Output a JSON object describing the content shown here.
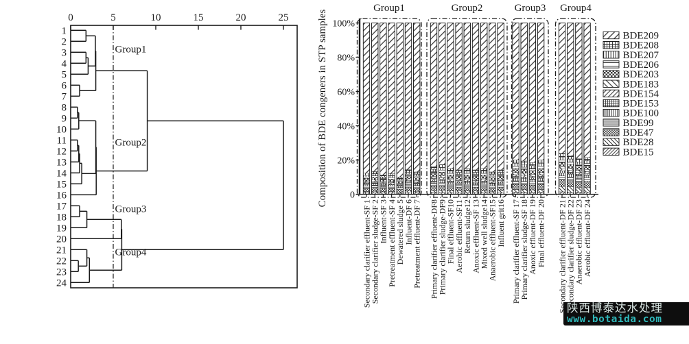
{
  "dendrogram": {
    "axis_ticks": [
      0,
      5,
      10,
      15,
      20,
      25
    ],
    "cut_value": 5,
    "leaves": [
      "1",
      "2",
      "3",
      "4",
      "5",
      "6",
      "7",
      "8",
      "9",
      "10",
      "11",
      "12",
      "13",
      "14",
      "15",
      "16",
      "17",
      "18",
      "19",
      "20",
      "21",
      "22",
      "23",
      "24"
    ],
    "group_labels": [
      {
        "label": "Group1",
        "row": 2.7
      },
      {
        "label": "Group2",
        "row": 11.2
      },
      {
        "label": "Group3",
        "row": 17.25
      },
      {
        "label": "Group4",
        "row": 21.2
      }
    ],
    "merges": [
      {
        "id": "m1",
        "a": "L1",
        "b": "L2",
        "h": 1.8
      },
      {
        "id": "m2",
        "a": "L3",
        "b": "L4",
        "h": 1.8
      },
      {
        "id": "m3",
        "a": "m2",
        "b": "L5",
        "h": 2.05
      },
      {
        "id": "m4",
        "a": "m1",
        "b": "m3",
        "h": 2.9
      },
      {
        "id": "m5",
        "a": "L6",
        "b": "L7",
        "h": 1.05
      },
      {
        "id": "m6",
        "a": "m4",
        "b": "m5",
        "h": 2.95
      },
      {
        "id": "m7",
        "a": "L8",
        "b": "L9",
        "h": 0.8
      },
      {
        "id": "m8",
        "a": "m7",
        "b": "L10",
        "h": 0.95
      },
      {
        "id": "m9",
        "a": "L11",
        "b": "L12",
        "h": 0.8
      },
      {
        "id": "m10",
        "a": "m9",
        "b": "L13",
        "h": 0.95
      },
      {
        "id": "m11",
        "a": "m10",
        "b": "L14",
        "h": 1.05
      },
      {
        "id": "m12",
        "a": "m11",
        "b": "L15",
        "h": 1.3
      },
      {
        "id": "m13",
        "a": "m8",
        "b": "m12",
        "h": 2.95
      },
      {
        "id": "m14",
        "a": "m13",
        "b": "L16",
        "h": 3.0
      },
      {
        "id": "m15",
        "a": "m6",
        "b": "m14",
        "h": 9.0
      },
      {
        "id": "m16",
        "a": "L17",
        "b": "L18",
        "h": 1.05
      },
      {
        "id": "m17",
        "a": "m16",
        "b": "L19",
        "h": 1.9
      },
      {
        "id": "m18",
        "a": "L22",
        "b": "L23",
        "h": 0.9
      },
      {
        "id": "m19",
        "a": "L21",
        "b": "m18",
        "h": 1.9
      },
      {
        "id": "m20",
        "a": "m19",
        "b": "L24",
        "h": 2.2
      },
      {
        "id": "m21",
        "a": "m17",
        "b": "L20",
        "h": 5.95
      },
      {
        "id": "m22",
        "a": "m21",
        "b": "m20",
        "h": 6.0
      },
      {
        "id": "m23",
        "a": "m15",
        "b": "m22",
        "h": 25.0
      }
    ]
  },
  "chart_data": {
    "type": "bar",
    "subtype": "stacked-percent",
    "ylabel": "Composition of BDE congeners in STP samples",
    "ylim": [
      0,
      100
    ],
    "ytick_labels": [
      "0",
      "20%",
      "40%",
      "60%",
      "80%",
      "100%"
    ],
    "ytick_values": [
      0,
      20,
      40,
      60,
      80,
      100
    ],
    "legend_position": "right",
    "groups": [
      {
        "label": "Group1",
        "count": 7
      },
      {
        "label": "Group2",
        "count": 9
      },
      {
        "label": "Group3",
        "count": 4
      },
      {
        "label": "Group4",
        "count": 4
      }
    ],
    "categories": [
      "Secondary clarifier effluent-SF 1",
      "Secondary clarifier sludge-SF 2",
      "Influent-SF 3",
      "Pretreatment effluent-SF 4",
      "Dewatered sludge 5",
      "Influent-DF 6",
      "Pretreatment effluent-DF 7",
      "Primary clarifier effluent-DF8",
      "Primary clarifier sludge-DF9",
      "Final effluent-SF10",
      "Aerobic effluent-SF11",
      "Return sludge12",
      "Anoxic effluent-SF 13",
      "Mixed well sludge14",
      "Anaerobic effluent-SF15",
      "Influent grit16",
      "Primary clarifier effluent-SF 17",
      "Primary clarifier sludge-SF 18",
      "Anoxic effluent-DF 19",
      "Final effluent-DF 20",
      "Secondary clarifier effluent-DF 21",
      "Secondary clarifier sludge-DF 22",
      "Anaerobic effluent-DF 23",
      "Aerobic effluent-DF 24"
    ],
    "stack_order": "bottom-to-top",
    "series": [
      {
        "name": "BDE15",
        "pattern": "diag-xs",
        "values": [
          0.8,
          0.8,
          0.7,
          0.7,
          0.6,
          0.9,
          0.8,
          1.0,
          1.1,
          0.9,
          0.9,
          0.9,
          0.9,
          0.9,
          0.8,
          0.9,
          1.2,
          1.2,
          1.1,
          1.2,
          1.4,
          1.3,
          1.2,
          1.3
        ]
      },
      {
        "name": "BDE28",
        "pattern": "back-sm",
        "values": [
          0.8,
          1.0,
          0.8,
          0.9,
          0.7,
          1.0,
          0.9,
          1.2,
          1.3,
          1.1,
          1.0,
          1.1,
          1.0,
          1.1,
          0.9,
          1.0,
          1.6,
          1.5,
          1.5,
          1.6,
          3.2,
          3.0,
          2.6,
          2.8
        ]
      },
      {
        "name": "BDE47",
        "pattern": "check-xs",
        "values": [
          2.0,
          2.2,
          1.8,
          1.9,
          1.6,
          2.3,
          2.1,
          2.5,
          2.6,
          2.3,
          2.2,
          2.3,
          2.2,
          2.3,
          2.0,
          2.2,
          3.0,
          2.9,
          2.8,
          3.0,
          3.8,
          3.6,
          3.3,
          3.4
        ]
      },
      {
        "name": "BDE99",
        "pattern": "horiz-sm",
        "values": [
          1.2,
          1.3,
          1.1,
          1.2,
          1.0,
          1.4,
          1.3,
          1.6,
          1.7,
          1.5,
          1.4,
          1.5,
          1.4,
          1.5,
          1.3,
          1.4,
          2.0,
          1.9,
          1.8,
          2.0,
          2.3,
          2.2,
          2.0,
          2.1
        ]
      },
      {
        "name": "BDE100",
        "pattern": "vert-xs",
        "values": [
          1.0,
          1.0,
          0.9,
          0.9,
          0.8,
          1.1,
          1.0,
          1.3,
          1.4,
          1.2,
          1.1,
          1.2,
          1.1,
          1.2,
          1.0,
          1.1,
          1.6,
          1.6,
          1.5,
          1.6,
          1.8,
          1.7,
          1.6,
          1.6
        ]
      },
      {
        "name": "BDE153",
        "pattern": "grid-xs",
        "values": [
          0.6,
          0.6,
          0.5,
          0.5,
          0.5,
          0.7,
          0.6,
          0.8,
          0.8,
          0.7,
          0.7,
          0.7,
          0.7,
          0.7,
          0.6,
          0.7,
          1.0,
          1.0,
          0.9,
          1.0,
          1.1,
          1.0,
          1.0,
          1.0
        ]
      },
      {
        "name": "BDE154",
        "pattern": "diag-sm",
        "values": [
          0.6,
          0.6,
          0.5,
          0.6,
          0.5,
          0.7,
          0.6,
          0.8,
          0.9,
          0.8,
          0.7,
          0.8,
          0.7,
          0.8,
          0.7,
          0.7,
          1.0,
          1.0,
          0.9,
          1.0,
          1.1,
          1.1,
          1.0,
          1.0
        ]
      },
      {
        "name": "BDE183",
        "pattern": "back-lg",
        "values": [
          0.8,
          0.8,
          0.7,
          0.7,
          0.6,
          0.9,
          0.8,
          1.0,
          1.1,
          0.9,
          0.9,
          0.9,
          0.9,
          0.9,
          0.8,
          0.9,
          1.3,
          1.2,
          1.2,
          1.3,
          1.4,
          1.3,
          1.2,
          1.3
        ]
      },
      {
        "name": "BDE203",
        "pattern": "check-sm",
        "values": [
          1.5,
          1.6,
          1.4,
          1.5,
          1.2,
          1.7,
          1.6,
          1.9,
          2.0,
          1.8,
          1.7,
          1.8,
          1.7,
          1.8,
          1.6,
          1.7,
          2.3,
          2.2,
          2.1,
          2.3,
          2.4,
          2.3,
          2.1,
          2.2
        ]
      },
      {
        "name": "BDE206",
        "pattern": "horiz-lg",
        "values": [
          0.8,
          0.9,
          0.8,
          0.8,
          0.7,
          1.0,
          0.9,
          1.1,
          1.2,
          1.0,
          1.0,
          1.0,
          1.0,
          1.0,
          0.9,
          1.0,
          1.4,
          1.3,
          1.3,
          1.4,
          1.5,
          1.4,
          1.3,
          1.3
        ]
      },
      {
        "name": "BDE207",
        "pattern": "vert-sm",
        "values": [
          1.0,
          1.1,
          0.9,
          1.0,
          0.8,
          1.2,
          1.1,
          1.4,
          1.5,
          1.3,
          1.2,
          1.3,
          1.2,
          1.3,
          1.1,
          1.2,
          1.7,
          1.7,
          1.6,
          1.7,
          1.8,
          1.7,
          1.6,
          1.6
        ]
      },
      {
        "name": "BDE208",
        "pattern": "grid-sm",
        "values": [
          1.2,
          1.3,
          1.1,
          1.2,
          1.0,
          1.4,
          1.3,
          1.6,
          1.7,
          1.5,
          1.4,
          1.5,
          1.4,
          1.5,
          1.3,
          1.4,
          1.9,
          1.9,
          1.8,
          1.9,
          2.0,
          1.9,
          1.8,
          1.8
        ]
      },
      {
        "name": "BDE209",
        "pattern": "diag-lg",
        "values": [
          87.7,
          86.8,
          88.8,
          88.1,
          90.0,
          85.7,
          87.0,
          83.8,
          82.7,
          85.0,
          85.8,
          85.0,
          85.8,
          85.0,
          87.0,
          85.8,
          80.0,
          80.6,
          81.5,
          80.0,
          76.2,
          77.5,
          79.3,
          78.6
        ]
      }
    ]
  },
  "watermark": {
    "line1": "陕西博泰达水处理",
    "line2": "www.botaida.com",
    "bg_color": "#0e0e0e",
    "line1_color": "#d9e6e3",
    "line2_color": "#2fb8ba"
  }
}
